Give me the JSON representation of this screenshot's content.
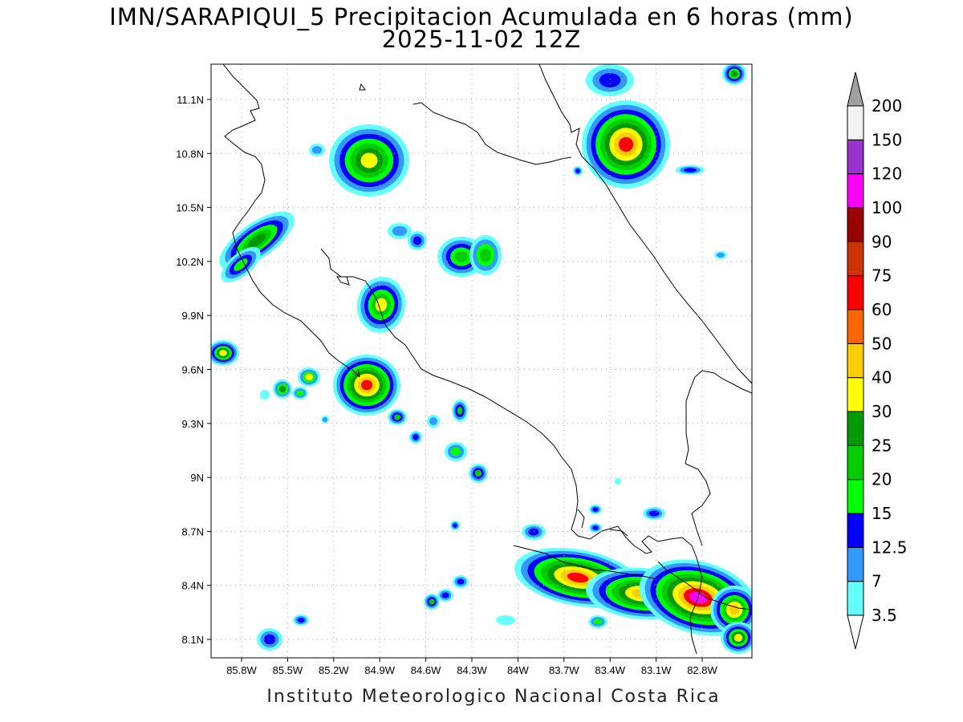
{
  "title": {
    "line1": "IMN/SARAPIQUI_5 Precipitacion Acumulada en 6 horas (mm)",
    "line2": "2025-11-02 12Z"
  },
  "credit": "Instituto Meteorologico Nacional Costa Rica",
  "map": {
    "lat_labels": [
      "11.1N",
      "10.8N",
      "10.5N",
      "10.2N",
      "9.9N",
      "9.6N",
      "9.3N",
      "9N",
      "8.7N",
      "8.4N",
      "8.1N"
    ],
    "lon_labels": [
      "85.8W",
      "85.5W",
      "85.2W",
      "84.9W",
      "84.6W",
      "84.3W",
      "84W",
      "83.7W",
      "83.4W",
      "83.1W",
      "82.8W"
    ],
    "grid": "dotted"
  },
  "colorbar": {
    "levels": [
      "3.5",
      "7",
      "12.5",
      "15",
      "20",
      "25",
      "30",
      "40",
      "50",
      "60",
      "75",
      "90",
      "100",
      "120",
      "150",
      "200"
    ],
    "colors": [
      "#66ffff",
      "#3399ff",
      "#0000ff",
      "#00ff00",
      "#00cc00",
      "#009900",
      "#ffff00",
      "#ffcc00",
      "#ff6600",
      "#ff0000",
      "#cc3300",
      "#990000",
      "#ff00ff",
      "#9933cc",
      "#f2f2f2"
    ],
    "over_color": "#a0a0a0",
    "under_color": "#ffffff"
  }
}
